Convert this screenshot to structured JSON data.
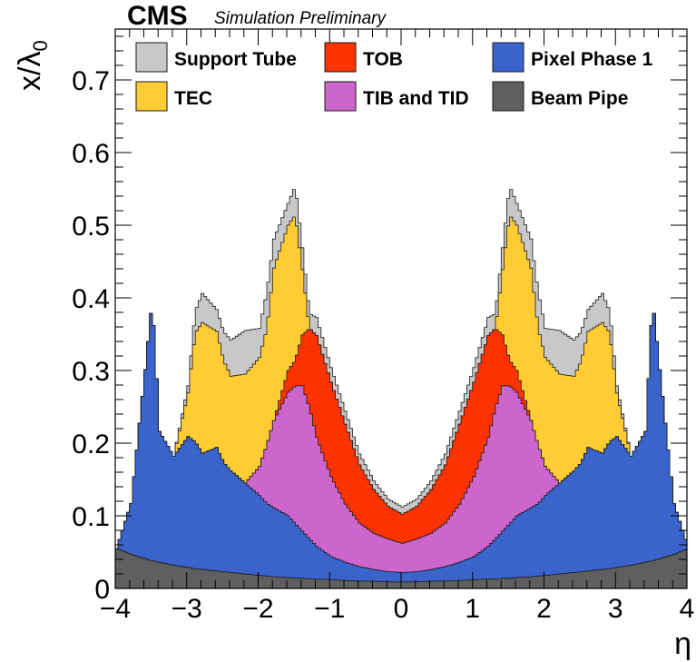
{
  "header": {
    "experiment": "CMS",
    "status": "Simulation Preliminary"
  },
  "chart_data": {
    "type": "area",
    "stacked": true,
    "xlabel": "η",
    "ylabel": "x/λ",
    "ylabel_subscript": "0",
    "xlim": [
      -4,
      4
    ],
    "ylim": [
      0,
      0.77
    ],
    "xticks": [
      -4,
      -3,
      -2,
      -1,
      0,
      1,
      2,
      3,
      4
    ],
    "xtick_labels": [
      "−4",
      "−3",
      "−2",
      "−1",
      "0",
      "1",
      "2",
      "3",
      "4"
    ],
    "yticks": [
      0,
      0.1,
      0.2,
      0.3,
      0.4,
      0.5,
      0.6,
      0.7
    ],
    "ytick_labels": [
      "0",
      "0.1",
      "0.2",
      "0.3",
      "0.4",
      "0.5",
      "0.6",
      "0.7"
    ],
    "grid": false,
    "legend_position": "top",
    "x": [
      -4.0,
      -3.8,
      -3.6,
      -3.5,
      -3.4,
      -3.2,
      -3.0,
      -2.9,
      -2.8,
      -2.6,
      -2.5,
      -2.4,
      -2.2,
      -2.0,
      -1.9,
      -1.8,
      -1.6,
      -1.5,
      -1.4,
      -1.3,
      -1.2,
      -1.0,
      -0.8,
      -0.6,
      -0.4,
      -0.2,
      0.0,
      0.2,
      0.4,
      0.6,
      0.8,
      1.0,
      1.2,
      1.3,
      1.4,
      1.5,
      1.6,
      1.8,
      1.9,
      2.0,
      2.2,
      2.4,
      2.5,
      2.6,
      2.8,
      2.9,
      3.0,
      3.2,
      3.4,
      3.5,
      3.6,
      3.8,
      4.0
    ],
    "series": [
      {
        "name": "Beam Pipe",
        "color": "#5f5f5f",
        "values": [
          0.055,
          0.047,
          0.041,
          0.038,
          0.036,
          0.032,
          0.029,
          0.027,
          0.026,
          0.024,
          0.023,
          0.022,
          0.02,
          0.018,
          0.017,
          0.016,
          0.015,
          0.014,
          0.014,
          0.013,
          0.013,
          0.012,
          0.011,
          0.01,
          0.01,
          0.009,
          0.009,
          0.009,
          0.01,
          0.01,
          0.011,
          0.012,
          0.013,
          0.013,
          0.014,
          0.014,
          0.015,
          0.016,
          0.017,
          0.018,
          0.02,
          0.022,
          0.023,
          0.024,
          0.026,
          0.027,
          0.029,
          0.032,
          0.036,
          0.038,
          0.041,
          0.047,
          0.055
        ]
      },
      {
        "name": "Pixel Phase 1",
        "color": "#3a64cc",
        "values": [
          0.0,
          0.07,
          0.26,
          0.36,
          0.18,
          0.15,
          0.18,
          0.175,
          0.16,
          0.17,
          0.15,
          0.14,
          0.125,
          0.11,
          0.1,
          0.095,
          0.085,
          0.075,
          0.065,
          0.055,
          0.045,
          0.032,
          0.025,
          0.02,
          0.016,
          0.014,
          0.013,
          0.014,
          0.016,
          0.02,
          0.025,
          0.032,
          0.045,
          0.055,
          0.065,
          0.075,
          0.085,
          0.095,
          0.1,
          0.11,
          0.125,
          0.14,
          0.15,
          0.17,
          0.16,
          0.175,
          0.18,
          0.15,
          0.18,
          0.36,
          0.26,
          0.07,
          0.0
        ]
      },
      {
        "name": "TIB and TID",
        "color": "#cc66cc",
        "values": [
          0.0,
          0.0,
          0.0,
          0.0,
          0.0,
          0.0,
          0.0,
          0.0,
          0.0,
          0.0,
          0.0,
          0.0,
          0.0,
          0.04,
          0.08,
          0.12,
          0.17,
          0.19,
          0.2,
          0.18,
          0.15,
          0.11,
          0.08,
          0.06,
          0.05,
          0.045,
          0.04,
          0.045,
          0.05,
          0.06,
          0.08,
          0.11,
          0.15,
          0.18,
          0.2,
          0.19,
          0.17,
          0.12,
          0.08,
          0.04,
          0.0,
          0.0,
          0.0,
          0.0,
          0.0,
          0.0,
          0.0,
          0.0,
          0.0,
          0.0,
          0.0,
          0.0,
          0.0
        ]
      },
      {
        "name": "TOB",
        "color": "#ff3300",
        "values": [
          0.0,
          0.0,
          0.0,
          0.0,
          0.0,
          0.0,
          0.0,
          0.0,
          0.0,
          0.0,
          0.0,
          0.0,
          0.0,
          0.0,
          0.0,
          0.0,
          0.03,
          0.035,
          0.07,
          0.11,
          0.14,
          0.13,
          0.11,
          0.08,
          0.06,
          0.045,
          0.04,
          0.045,
          0.06,
          0.08,
          0.11,
          0.13,
          0.14,
          0.11,
          0.07,
          0.035,
          0.03,
          0.0,
          0.0,
          0.0,
          0.0,
          0.0,
          0.0,
          0.0,
          0.0,
          0.0,
          0.0,
          0.0,
          0.0,
          0.0,
          0.0,
          0.0,
          0.0
        ]
      },
      {
        "name": "TEC",
        "color": "#ffcc33",
        "values": [
          0.0,
          0.0,
          0.0,
          0.0,
          0.0,
          0.0,
          0.06,
          0.15,
          0.18,
          0.16,
          0.14,
          0.13,
          0.15,
          0.15,
          0.16,
          0.21,
          0.2,
          0.2,
          0.09,
          0.0,
          0.0,
          0.0,
          0.0,
          0.0,
          0.0,
          0.0,
          0.0,
          0.0,
          0.0,
          0.0,
          0.0,
          0.0,
          0.0,
          0.0,
          0.09,
          0.2,
          0.2,
          0.21,
          0.16,
          0.15,
          0.15,
          0.13,
          0.14,
          0.16,
          0.18,
          0.15,
          0.06,
          0.0,
          0.0,
          0.0,
          0.0,
          0.0,
          0.0
        ]
      },
      {
        "name": "Support Tube",
        "color": "#c8c8c8",
        "values": [
          0.0,
          0.0,
          0.0,
          0.0,
          0.0,
          0.0,
          0.01,
          0.03,
          0.04,
          0.03,
          0.04,
          0.05,
          0.06,
          0.04,
          0.05,
          0.04,
          0.03,
          0.04,
          0.03,
          0.02,
          0.025,
          0.02,
          0.018,
          0.015,
          0.012,
          0.01,
          0.01,
          0.01,
          0.012,
          0.015,
          0.018,
          0.02,
          0.025,
          0.02,
          0.03,
          0.04,
          0.03,
          0.04,
          0.05,
          0.04,
          0.06,
          0.05,
          0.04,
          0.03,
          0.04,
          0.03,
          0.01,
          0.0,
          0.0,
          0.0,
          0.0,
          0.0,
          0.0
        ]
      }
    ],
    "legend": [
      {
        "label": "Support Tube",
        "color": "#c8c8c8"
      },
      {
        "label": "TOB",
        "color": "#ff3300"
      },
      {
        "label": "Pixel Phase 1",
        "color": "#3a64cc"
      },
      {
        "label": "TEC",
        "color": "#ffcc33"
      },
      {
        "label": "TIB and TID",
        "color": "#cc66cc"
      },
      {
        "label": "Beam Pipe",
        "color": "#5f5f5f"
      }
    ]
  }
}
